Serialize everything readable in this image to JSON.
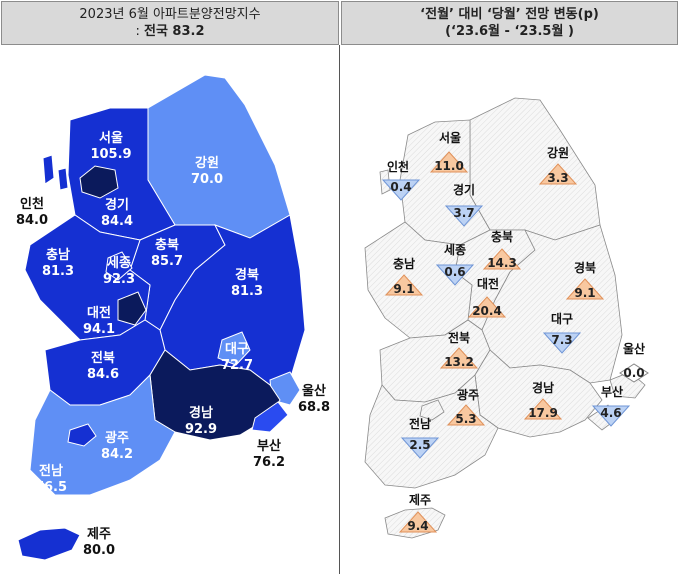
{
  "left_header": {
    "line1": "2023년 6월 아파트분양전망지수",
    "line2_prefix": ": ",
    "line2_bold": "전국  83.2"
  },
  "right_header": {
    "line1": "‘전월’ 대비 ‘당월’ 전망 변동(p)",
    "line2": "(‘23.6월  -  ‘23.5월 )"
  },
  "index_map": [
    {
      "region": "서울",
      "value": "105.9"
    },
    {
      "region": "인천",
      "value": "84.0"
    },
    {
      "region": "경기",
      "value": "84.4"
    },
    {
      "region": "강원",
      "value": "70.0"
    },
    {
      "region": "충남",
      "value": "81.3"
    },
    {
      "region": "세종",
      "value": "92.3"
    },
    {
      "region": "충북",
      "value": "85.7"
    },
    {
      "region": "경북",
      "value": "81.3"
    },
    {
      "region": "대전",
      "value": "94.1"
    },
    {
      "region": "대구",
      "value": "72.7"
    },
    {
      "region": "전북",
      "value": "84.6"
    },
    {
      "region": "울산",
      "value": "68.8"
    },
    {
      "region": "경남",
      "value": "92.9"
    },
    {
      "region": "광주",
      "value": "84.2"
    },
    {
      "region": "부산",
      "value": "76.2"
    },
    {
      "region": "전남",
      "value": "76.5"
    },
    {
      "region": "제주",
      "value": "80.0"
    }
  ],
  "change_map": [
    {
      "region": "서울",
      "value": "11.0",
      "dir": "up"
    },
    {
      "region": "인천",
      "value": "0.4",
      "dir": "down"
    },
    {
      "region": "경기",
      "value": "3.7",
      "dir": "down"
    },
    {
      "region": "강원",
      "value": "3.3",
      "dir": "up"
    },
    {
      "region": "충북",
      "value": "14.3",
      "dir": "up"
    },
    {
      "region": "세종",
      "value": "0.6",
      "dir": "down"
    },
    {
      "region": "충남",
      "value": "9.1",
      "dir": "up"
    },
    {
      "region": "경북",
      "value": "9.1",
      "dir": "up"
    },
    {
      "region": "대전",
      "value": "20.4",
      "dir": "up"
    },
    {
      "region": "대구",
      "value": "7.3",
      "dir": "down"
    },
    {
      "region": "전북",
      "value": "13.2",
      "dir": "up"
    },
    {
      "region": "울산",
      "value": "0.0",
      "dir": "flat"
    },
    {
      "region": "광주",
      "value": "5.3",
      "dir": "up"
    },
    {
      "region": "경남",
      "value": "17.9",
      "dir": "up"
    },
    {
      "region": "부산",
      "value": "4.6",
      "dir": "down"
    },
    {
      "region": "전남",
      "value": "2.5",
      "dir": "down"
    },
    {
      "region": "제주",
      "value": "9.4",
      "dir": "up"
    }
  ],
  "colors": {
    "dark": "#0b1a5c",
    "mid": "#1530d2",
    "bright": "#2a4bf0",
    "light": "#5f8ff5",
    "up_fill": "#f8c8a0",
    "down_fill": "#bcd2f4",
    "neutral_fill": "#ffffff"
  }
}
